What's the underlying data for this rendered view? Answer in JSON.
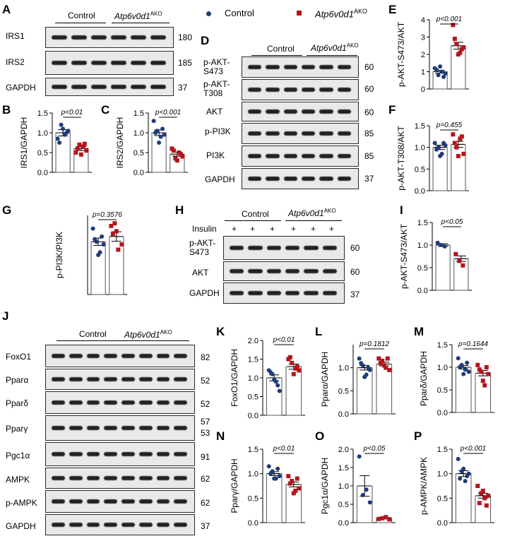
{
  "legend": {
    "control": "Control",
    "ako_main": "Atp6v0d1",
    "ako_sup": "AKO",
    "control_color": "#1f3b7a",
    "ako_color": "#b4151c"
  },
  "panels": {
    "A": "A",
    "B": "B",
    "C": "C",
    "D": "D",
    "E": "E",
    "F": "F",
    "G": "G",
    "H": "H",
    "I": "I",
    "J": "J",
    "K": "K",
    "L": "L",
    "M": "M",
    "N": "N",
    "O": "O",
    "P": "P"
  },
  "blotA": {
    "rows": [
      {
        "label": "IRS1",
        "kda": "180"
      },
      {
        "label": "IRS2",
        "kda": "185"
      },
      {
        "label": "GAPDH",
        "kda": "37"
      }
    ],
    "group_control": "Control",
    "group_ako": "Atp6v0d1",
    "group_ako_sup": "AKO"
  },
  "blotD": {
    "rows": [
      {
        "label": "p-AKT-\nS473",
        "kda": "60"
      },
      {
        "label": "p-AKT-\nT308",
        "kda": "60"
      },
      {
        "label": "AKT",
        "kda": "60"
      },
      {
        "label": "p-PI3K",
        "kda": "85"
      },
      {
        "label": "PI3K",
        "kda": "85"
      },
      {
        "label": "GAPDH",
        "kda": "37"
      }
    ],
    "group_control": "Control",
    "group_ako": "Atp6v0d1",
    "group_ako_sup": "AKO"
  },
  "blotH": {
    "insulin_label": "Insulin",
    "plus": "+",
    "rows": [
      {
        "label": "p-AKT-\nS473",
        "kda": "60"
      },
      {
        "label": "AKT",
        "kda": "60"
      },
      {
        "label": "GAPDH",
        "kda": "37"
      }
    ],
    "group_control": "Control",
    "group_ako": "Atp6v0d1",
    "group_ako_sup": "AKO"
  },
  "blotJ": {
    "rows": [
      {
        "label": "FoxO1",
        "kda": "82"
      },
      {
        "label": "Pparα",
        "kda": "52"
      },
      {
        "label": "Pparδ",
        "kda": "52"
      },
      {
        "label": "Pparγ",
        "kda": "57",
        "kda2": "53"
      },
      {
        "label": "Pgc1α",
        "kda": "91"
      },
      {
        "label": "AMPK",
        "kda": "62"
      },
      {
        "label": "p-AMPK",
        "kda": "62"
      },
      {
        "label": "GAPDH",
        "kda": "37"
      }
    ],
    "group_control": "Control",
    "group_ako": "Atp6v0d1",
    "group_ako_sup": "AKO"
  },
  "chart_data": [
    {
      "id": "B",
      "type": "bar",
      "ylabel": "IRS1/GAPDH",
      "ylim": [
        0,
        1.5
      ],
      "yticks": [
        "0.0",
        "0.5",
        "1.0",
        "1.5"
      ],
      "pvalue": "p<0.01",
      "series": [
        {
          "name": "Control",
          "mean": 1.0,
          "sem": 0.08,
          "points": [
            0.85,
            1.2,
            0.95,
            1.05,
            0.75,
            1.1,
            1.0
          ]
        },
        {
          "name": "Atp6v0d1 AKO",
          "mean": 0.6,
          "sem": 0.05,
          "points": [
            0.5,
            0.7,
            0.65,
            0.55,
            0.6,
            0.45,
            0.72
          ]
        }
      ]
    },
    {
      "id": "C",
      "type": "bar",
      "ylabel": "IRS2/GAPDH",
      "ylim": [
        0,
        1.5
      ],
      "yticks": [
        "0.0",
        "0.5",
        "1.0",
        "1.5"
      ],
      "pvalue": "p<0.001",
      "series": [
        {
          "name": "Control",
          "mean": 1.0,
          "sem": 0.07,
          "points": [
            1.3,
            1.05,
            0.9,
            0.95,
            1.0,
            0.75,
            1.1
          ]
        },
        {
          "name": "Atp6v0d1 AKO",
          "mean": 0.46,
          "sem": 0.05,
          "points": [
            0.6,
            0.35,
            0.5,
            0.4,
            0.55,
            0.3,
            0.45
          ]
        }
      ]
    },
    {
      "id": "E",
      "type": "bar",
      "ylabel": "p-AKT-S473/AKT",
      "ylim": [
        0,
        4
      ],
      "yticks": [
        "0",
        "1",
        "2",
        "3",
        "4"
      ],
      "pvalue": "p<0.001",
      "series": [
        {
          "name": "Control",
          "mean": 1.0,
          "sem": 0.08,
          "points": [
            1.2,
            0.8,
            1.0,
            0.9,
            1.1,
            1.3,
            0.7
          ]
        },
        {
          "name": "Atp6v0d1 AKO",
          "mean": 2.5,
          "sem": 0.2,
          "points": [
            3.7,
            2.6,
            2.1,
            2.4,
            2.9,
            2.0,
            2.3
          ]
        }
      ]
    },
    {
      "id": "F",
      "type": "bar",
      "ylabel": "p-AKT-T308/AKT",
      "ylim": [
        0,
        1.5
      ],
      "yticks": [
        "0.0",
        "0.5",
        "1.0",
        "1.5"
      ],
      "pvalue": "p=0.455",
      "series": [
        {
          "name": "Control",
          "mean": 1.0,
          "sem": 0.05,
          "points": [
            1.1,
            1.0,
            0.85,
            1.05,
            0.95,
            0.8,
            1.1
          ]
        },
        {
          "name": "Atp6v0d1 AKO",
          "mean": 1.07,
          "sem": 0.07,
          "points": [
            1.3,
            1.0,
            1.2,
            0.85,
            1.1,
            0.8,
            1.25
          ]
        }
      ]
    },
    {
      "id": "G",
      "type": "bar",
      "ylabel": "p-PI3K/PI3K",
      "ylim": [
        0,
        1.5
      ],
      "yticks": [],
      "pvalue": "p=0.3576",
      "series": [
        {
          "name": "Control",
          "mean": 1.0,
          "sem": 0.07,
          "points": [
            1.25,
            1.0,
            0.8,
            0.95,
            1.05,
            0.75,
            1.1
          ]
        },
        {
          "name": "Atp6v0d1 AKO",
          "mean": 1.1,
          "sem": 0.09,
          "points": [
            1.3,
            1.35,
            0.85,
            0.95,
            1.15,
            1.2
          ]
        }
      ]
    },
    {
      "id": "I",
      "type": "bar",
      "ylabel": "p-AKT-S473/AKT",
      "ylim": [
        0,
        1.5
      ],
      "yticks": [
        "0.0",
        "0.5",
        "1.0",
        "1.5"
      ],
      "pvalue": "p<0.05",
      "series": [
        {
          "name": "Control",
          "mean": 1.0,
          "sem": 0.03,
          "points": [
            1.05,
            1.0,
            0.97
          ]
        },
        {
          "name": "Atp6v0d1 AKO",
          "mean": 0.7,
          "sem": 0.06,
          "points": [
            0.8,
            0.65,
            0.55
          ]
        }
      ]
    },
    {
      "id": "K",
      "type": "bar",
      "ylabel": "FoxO1/GAPDH",
      "ylim": [
        0,
        2.0
      ],
      "yticks": [
        "0.0",
        "0.5",
        "1.0",
        "1.5",
        "2.0"
      ],
      "pvalue": "p<0.01",
      "series": [
        {
          "name": "Control",
          "mean": 1.0,
          "sem": 0.08,
          "points": [
            1.2,
            1.1,
            0.9,
            0.65,
            1.15,
            0.95,
            0.8
          ]
        },
        {
          "name": "Atp6v0d1 AKO",
          "mean": 1.3,
          "sem": 0.07,
          "points": [
            1.5,
            1.4,
            1.25,
            1.2,
            1.55,
            1.1,
            1.3
          ]
        }
      ]
    },
    {
      "id": "L",
      "type": "bar",
      "ylabel": "Pparα/GAPDH",
      "ylim": [
        0,
        1.5
      ],
      "yticks": [
        "0.0",
        "0.5",
        "1.0"
      ],
      "pvalue": "p=0.1812",
      "series": [
        {
          "name": "Control",
          "mean": 1.0,
          "sem": 0.05,
          "points": [
            1.2,
            1.05,
            0.85,
            0.95,
            1.1,
            0.8,
            1.0
          ]
        },
        {
          "name": "Atp6v0d1 AKO",
          "mean": 1.08,
          "sem": 0.04,
          "points": [
            1.2,
            1.15,
            1.0,
            0.95,
            1.1,
            1.05,
            1.2
          ]
        }
      ]
    },
    {
      "id": "M",
      "type": "bar",
      "ylabel": "Pparδ/GAPDH",
      "ylim": [
        0,
        1.5
      ],
      "yticks": [
        "0.0",
        "0.5",
        "1.0",
        "1.5"
      ],
      "pvalue": "p=0.1644",
      "series": [
        {
          "name": "Control",
          "mean": 1.0,
          "sem": 0.04,
          "points": [
            1.2,
            1.05,
            0.95,
            0.9,
            1.0,
            0.85,
            1.1
          ]
        },
        {
          "name": "Atp6v0d1 AKO",
          "mean": 0.87,
          "sem": 0.06,
          "points": [
            1.05,
            0.9,
            0.6,
            0.85,
            0.95,
            0.7,
            1.0
          ]
        }
      ]
    },
    {
      "id": "N",
      "type": "bar",
      "ylabel": "Pparγ/GAPDH",
      "ylim": [
        0,
        1.5
      ],
      "yticks": [
        "0.0",
        "0.5",
        "1.0",
        "1.5"
      ],
      "pvalue": "p<0.01",
      "series": [
        {
          "name": "Control",
          "mean": 1.0,
          "sem": 0.04,
          "points": [
            1.15,
            1.05,
            0.9,
            0.95,
            1.0,
            0.9,
            1.1
          ]
        },
        {
          "name": "Atp6v0d1 AKO",
          "mean": 0.78,
          "sem": 0.05,
          "points": [
            0.95,
            0.85,
            0.65,
            0.7,
            0.8,
            0.6,
            0.9
          ]
        }
      ]
    },
    {
      "id": "O",
      "type": "bar",
      "ylabel": "Pgc1α/GAPDH",
      "ylim": [
        0,
        2.0
      ],
      "yticks": [
        "0.0",
        "0.5",
        "1.0",
        "1.5",
        "2.0"
      ],
      "pvalue": "p<0.05",
      "series": [
        {
          "name": "Control",
          "mean": 1.0,
          "sem": 0.28,
          "points": [
            1.8,
            0.75,
            0.9,
            0.55
          ]
        },
        {
          "name": "Atp6v0d1 AKO",
          "mean": 0.12,
          "sem": 0.02,
          "points": [
            0.1,
            0.12,
            0.15,
            0.09
          ]
        }
      ]
    },
    {
      "id": "P",
      "type": "bar",
      "ylabel": "p-AMPK/AMPK",
      "ylim": [
        0,
        1.5
      ],
      "yticks": [
        "0.0",
        "0.5",
        "1.0",
        "1.5"
      ],
      "pvalue": "p<0.001",
      "series": [
        {
          "name": "Control",
          "mean": 1.0,
          "sem": 0.06,
          "points": [
            1.3,
            1.05,
            0.85,
            1.0,
            0.9,
            1.1,
            0.95
          ]
        },
        {
          "name": "Atp6v0d1 AKO",
          "mean": 0.55,
          "sem": 0.05,
          "points": [
            0.75,
            0.6,
            0.5,
            0.55,
            0.4,
            0.65,
            0.35
          ]
        }
      ]
    }
  ]
}
